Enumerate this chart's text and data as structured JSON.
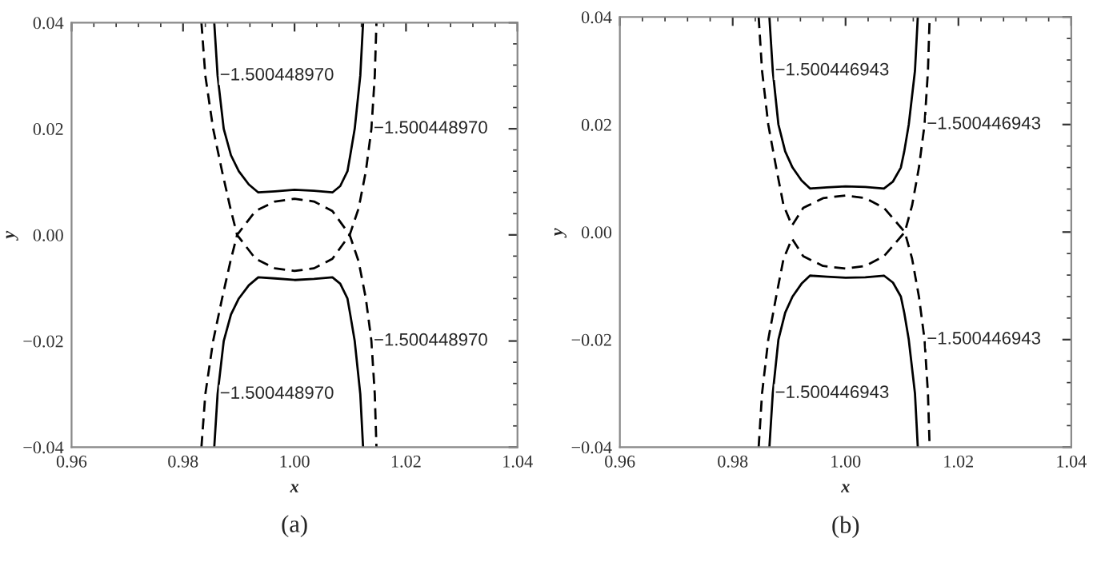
{
  "chart_data": [
    {
      "type": "line",
      "title": "(a)",
      "xlabel": "x",
      "ylabel": "y",
      "xlim": [
        0.96,
        1.04
      ],
      "ylim": [
        -0.04,
        0.04
      ],
      "xticks": [
        {
          "value": 0.96,
          "label": "0.96"
        },
        {
          "value": 0.98,
          "label": "0.98"
        },
        {
          "value": 1.0,
          "label": "1.00"
        },
        {
          "value": 1.02,
          "label": "1.02"
        },
        {
          "value": 1.04,
          "label": "1.04"
        }
      ],
      "yticks": [
        {
          "value": -0.04,
          "label": "−0.04"
        },
        {
          "value": -0.02,
          "label": "−0.02"
        },
        {
          "value": 0.0,
          "label": "0.00"
        },
        {
          "value": 0.02,
          "label": "0.02"
        },
        {
          "value": 0.04,
          "label": "0.04"
        }
      ],
      "series": [
        {
          "color": "#000000",
          "line_style": "solid",
          "x": [
            0.9856,
            0.9862,
            0.9873,
            0.9886,
            0.99,
            0.9918,
            0.9935,
            0.9965,
            1.0,
            1.0035,
            1.0068,
            1.0082,
            1.0095,
            1.01,
            1.0108,
            1.0118,
            1.0123
          ],
          "values": [
            0.04,
            0.03,
            0.02,
            0.015,
            0.012,
            0.0095,
            0.008,
            0.0082,
            0.0085,
            0.0083,
            0.008,
            0.0092,
            0.012,
            0.015,
            0.02,
            0.03,
            0.04
          ]
        },
        {
          "color": "#000000",
          "line_style": "solid",
          "x": [
            0.9856,
            0.9862,
            0.9873,
            0.9886,
            0.99,
            0.9918,
            0.9935,
            0.9965,
            1.0,
            1.0035,
            1.0068,
            1.0082,
            1.0095,
            1.01,
            1.0108,
            1.0118,
            1.0123
          ],
          "values": [
            -0.04,
            -0.03,
            -0.02,
            -0.015,
            -0.012,
            -0.0095,
            -0.008,
            -0.0082,
            -0.0085,
            -0.0083,
            -0.008,
            -0.0092,
            -0.012,
            -0.015,
            -0.02,
            -0.03,
            -0.04
          ]
        },
        {
          "color": "#000000",
          "line_style": "dashed",
          "x": [
            0.9833,
            0.984,
            0.9854,
            0.987,
            0.9885,
            0.9897,
            0.993,
            0.9965,
            1.0,
            1.0035,
            1.0068,
            1.0099,
            1.0115,
            1.0128,
            1.0138,
            1.0144,
            1.0147
          ],
          "values": [
            0.04,
            0.03,
            0.02,
            0.012,
            0.005,
            0.0,
            -0.0045,
            -0.0063,
            -0.0068,
            -0.0063,
            -0.0045,
            0.0,
            0.005,
            0.012,
            0.02,
            0.03,
            0.04
          ]
        },
        {
          "color": "#000000",
          "line_style": "dashed",
          "x": [
            0.9833,
            0.984,
            0.9854,
            0.987,
            0.9885,
            0.9897,
            0.993,
            0.9965,
            1.0,
            1.0035,
            1.0068,
            1.0099,
            1.0115,
            1.0128,
            1.0138,
            1.0144,
            1.0147
          ],
          "values": [
            -0.04,
            -0.03,
            -0.02,
            -0.012,
            -0.005,
            0.0,
            0.0045,
            0.0063,
            0.0068,
            0.0063,
            0.0045,
            0.0,
            -0.005,
            -0.012,
            -0.02,
            -0.03,
            -0.04
          ]
        }
      ],
      "annotations": [
        {
          "text": "−1.500448970",
          "x": 0.9862,
          "y": 0.03
        },
        {
          "text": "−1.500448970",
          "x": 1.0138,
          "y": 0.02
        },
        {
          "text": "−1.500448970",
          "x": 1.0138,
          "y": -0.02
        },
        {
          "text": "−1.500448970",
          "x": 0.9862,
          "y": -0.03
        }
      ]
    },
    {
      "type": "line",
      "title": "(b)",
      "xlabel": "x",
      "ylabel": "y",
      "xlim": [
        0.96,
        1.04
      ],
      "ylim": [
        -0.04,
        0.04
      ],
      "xticks": [
        {
          "value": 0.96,
          "label": "0.96"
        },
        {
          "value": 0.98,
          "label": "0.98"
        },
        {
          "value": 1.0,
          "label": "1.00"
        },
        {
          "value": 1.02,
          "label": "1.02"
        },
        {
          "value": 1.04,
          "label": "1.04"
        }
      ],
      "yticks": [
        {
          "value": -0.04,
          "label": "−0.04"
        },
        {
          "value": -0.02,
          "label": "−0.02"
        },
        {
          "value": 0.0,
          "label": "0.00"
        },
        {
          "value": 0.02,
          "label": "0.02"
        },
        {
          "value": 0.04,
          "label": "0.04"
        }
      ],
      "series": [
        {
          "color": "#000000",
          "line_style": "solid",
          "x": [
            0.9865,
            0.9871,
            0.9881,
            0.9893,
            0.9906,
            0.9922,
            0.9937,
            0.9967,
            1.0,
            1.0035,
            1.0068,
            1.0084,
            1.0098,
            1.0104,
            1.0112,
            1.0123,
            1.0128
          ],
          "values": [
            0.04,
            0.03,
            0.02,
            0.015,
            0.012,
            0.0096,
            0.0081,
            0.0083,
            0.0085,
            0.0084,
            0.0081,
            0.0094,
            0.012,
            0.015,
            0.02,
            0.03,
            0.04
          ]
        },
        {
          "color": "#000000",
          "line_style": "solid",
          "x": [
            0.9865,
            0.9871,
            0.9881,
            0.9893,
            0.9906,
            0.9922,
            0.9937,
            0.9967,
            1.0,
            1.0035,
            1.0068,
            1.0084,
            1.0098,
            1.0104,
            1.0112,
            1.0123,
            1.0128
          ],
          "values": [
            -0.04,
            -0.03,
            -0.02,
            -0.015,
            -0.012,
            -0.0096,
            -0.0081,
            -0.0083,
            -0.0085,
            -0.0084,
            -0.0081,
            -0.0094,
            -0.012,
            -0.015,
            -0.02,
            -0.03,
            -0.04
          ]
        },
        {
          "color": "#000000",
          "line_style": "dashed",
          "x": [
            0.9846,
            0.9852,
            0.9863,
            0.9877,
            0.989,
            0.9905,
            0.9925,
            0.996,
            1.0,
            1.0035,
            1.0068,
            1.0105,
            1.0118,
            1.013,
            1.014,
            1.0146,
            1.0149
          ],
          "values": [
            0.04,
            0.03,
            0.02,
            0.012,
            0.005,
            0.0012,
            0.0045,
            0.0063,
            0.0068,
            0.0063,
            0.0045,
            0.0,
            -0.005,
            -0.012,
            -0.02,
            -0.03,
            -0.04
          ]
        },
        {
          "color": "#000000",
          "line_style": "dashed",
          "x": [
            0.9846,
            0.9852,
            0.9863,
            0.9877,
            0.989,
            0.9905,
            0.9925,
            0.996,
            1.0,
            1.0035,
            1.0068,
            1.0105,
            1.0118,
            1.013,
            1.014,
            1.0146,
            1.0149
          ],
          "values": [
            -0.04,
            -0.03,
            -0.02,
            -0.012,
            -0.005,
            -0.0012,
            -0.0045,
            -0.0063,
            -0.0068,
            -0.0063,
            -0.0045,
            0.0,
            0.005,
            0.012,
            0.02,
            0.03,
            0.04
          ]
        }
      ],
      "annotations": [
        {
          "text": "−1.500446943",
          "x": 0.9871,
          "y": 0.03
        },
        {
          "text": "−1.500446943",
          "x": 1.014,
          "y": 0.02
        },
        {
          "text": "−1.500446943",
          "x": 1.014,
          "y": -0.02
        },
        {
          "text": "−1.500446943",
          "x": 0.9871,
          "y": -0.03
        }
      ]
    }
  ]
}
